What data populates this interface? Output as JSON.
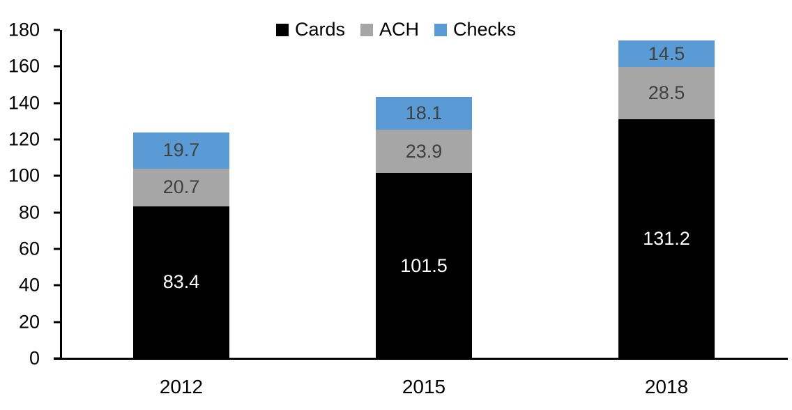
{
  "chart_data": {
    "type": "bar",
    "stacked": true,
    "title": "",
    "xlabel": "",
    "ylabel": "",
    "categories": [
      "2012",
      "2015",
      "2018"
    ],
    "series": [
      {
        "name": "Cards",
        "color": "#000000",
        "label_color": "#ffffff",
        "values": [
          83.4,
          101.5,
          131.2
        ]
      },
      {
        "name": "ACH",
        "color": "#a6a6a6",
        "label_color": "#404040",
        "values": [
          20.7,
          23.9,
          28.5
        ]
      },
      {
        "name": "Checks",
        "color": "#5b9bd5",
        "label_color": "#404040",
        "values": [
          19.7,
          18.1,
          14.5
        ]
      }
    ],
    "ylim": [
      0,
      180
    ],
    "yticks": [
      0,
      20,
      40,
      60,
      80,
      100,
      120,
      140,
      160,
      180
    ],
    "grid": false,
    "legend_position": "top-center",
    "axis_color": "#000000",
    "background_color": "#ffffff",
    "value_label_decimals": 1
  }
}
